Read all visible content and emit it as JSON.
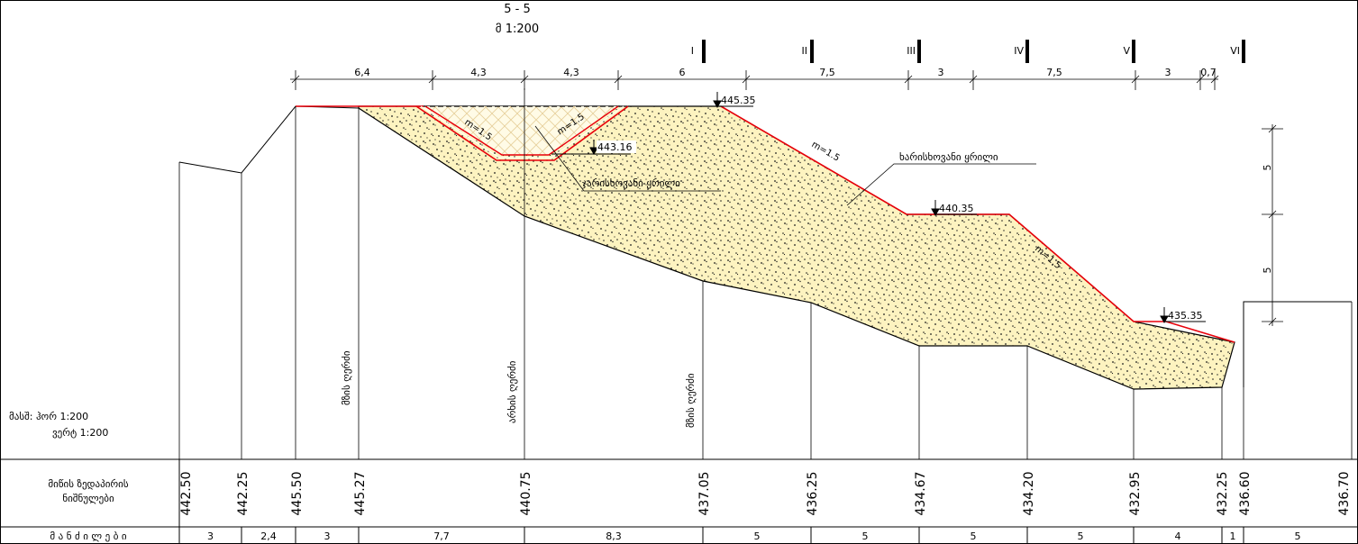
{
  "title": {
    "section": "5 - 5",
    "scale": "მ 1:200"
  },
  "scale_note": {
    "line1": "მასშ:  ჰორ 1:200",
    "line2": "ვერტ 1:200"
  },
  "section_marks": [
    "I",
    "II",
    "III",
    "IV",
    "V",
    "VI"
  ],
  "dimensions": [
    "6,4",
    "4,3",
    "4,3",
    "6",
    "7,5",
    "3",
    "7,5",
    "3",
    "0,7"
  ],
  "elevations": [
    "445.35",
    "443.16",
    "440.35",
    "435.35"
  ],
  "slope_labels": [
    "m=1.5",
    "m=1.5",
    "m=1.5",
    "m=1.5"
  ],
  "material_labels": {
    "main": "ხარისხოვანი ყრილი",
    "upper": "ჯარისხოვანი ყრილი"
  },
  "vertical_labels": [
    "მზის ღერძი",
    "არხის ღერძი",
    "მზის ღერძი"
  ],
  "right_dims": [
    "5",
    "5"
  ],
  "table": {
    "row1_header_line1": "მიწის ზედაპირის",
    "row1_header_line2": "ნიშნულები",
    "row2_header": "მ ა ნ ძ ი ლ ე ბ ი",
    "ground_elevations": [
      "442.50",
      "442.25",
      "445.50",
      "445.27",
      "440.75",
      "437.05",
      "436.25",
      "434.67",
      "434.20",
      "432.95",
      "432.25",
      "436.60",
      "436.70"
    ],
    "distances": [
      "3",
      "2,4",
      "3",
      "7,7",
      "8,3",
      "5",
      "5",
      "5",
      "5",
      "4",
      "1",
      "5"
    ]
  },
  "colors": {
    "fill": "#fdf3c0",
    "red_line": "#e8000a",
    "ink": "#000000"
  }
}
